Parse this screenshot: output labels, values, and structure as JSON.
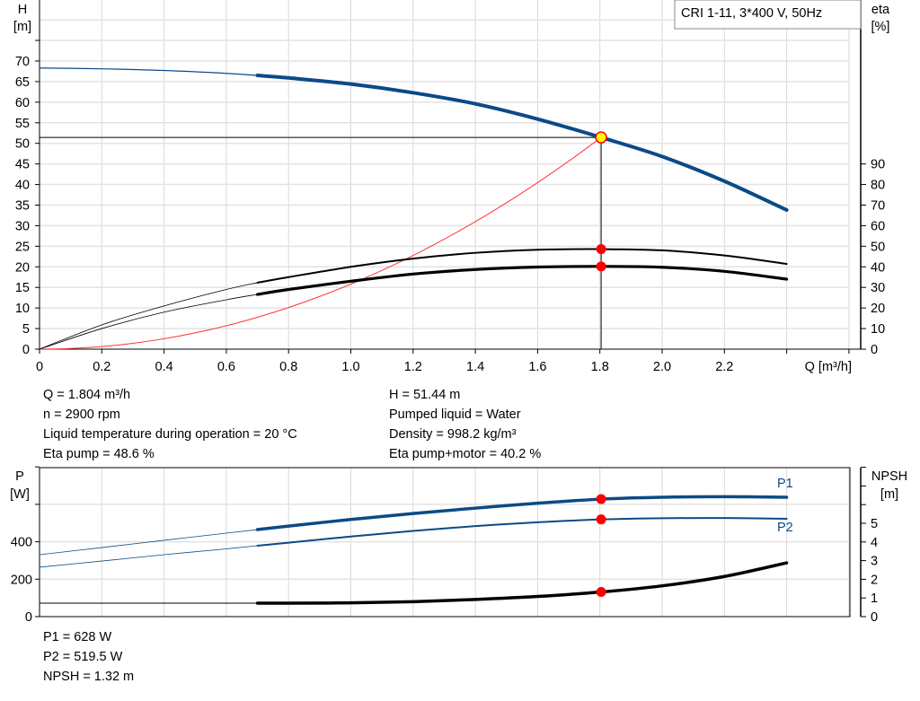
{
  "chart_data": [
    {
      "type": "line",
      "title": "CRI 1-11, 3*400 V, 50Hz",
      "xlabel": "Q [m³/h]",
      "ylabel": [
        "H",
        "[m]"
      ],
      "y2label": [
        "eta",
        "[%]"
      ],
      "xlim": [
        0,
        2.6
      ],
      "ylim": [
        0,
        85
      ],
      "y2lim": [
        0,
        90
      ],
      "x_ticks": [
        "0",
        "0.2",
        "0.4",
        "0.6",
        "0.8",
        "1.0",
        "1.2",
        "1.4",
        "1.6",
        "1.8",
        "2.0",
        "2.2"
      ],
      "y_ticks": [
        "0",
        "5",
        "10",
        "15",
        "20",
        "25",
        "30",
        "35",
        "40",
        "45",
        "50",
        "55",
        "60",
        "65",
        "70"
      ],
      "y2_ticks": [
        "0",
        "10",
        "20",
        "30",
        "40",
        "50",
        "60",
        "70",
        "80",
        "90"
      ],
      "grid": true,
      "x": [
        0,
        0.2,
        0.4,
        0.6,
        0.7,
        0.8,
        1.0,
        1.2,
        1.4,
        1.6,
        1.804,
        2.0,
        2.2,
        2.4
      ],
      "series": [
        {
          "key": "H",
          "axis": "left",
          "color": "#0b4a86",
          "values": [
            68.3,
            68.1,
            67.7,
            67.0,
            66.5,
            65.9,
            64.4,
            62.3,
            59.6,
            55.9,
            51.44,
            46.8,
            40.8,
            33.8
          ]
        },
        {
          "key": "eta_pump",
          "axis": "right",
          "color": "#000000",
          "values": [
            0,
            11.8,
            21,
            29,
            32.3,
            35,
            40,
            44,
            46.8,
            48.3,
            48.6,
            48.0,
            45.5,
            41.4
          ]
        },
        {
          "key": "eta_pump_motor",
          "axis": "right",
          "color": "#000000",
          "values": [
            0,
            10,
            18,
            24,
            26.6,
            29,
            33,
            36.5,
            38.7,
            39.9,
            40.2,
            39.8,
            37.8,
            34.0
          ]
        }
      ],
      "system_curve": {
        "color": "#ff3333",
        "through": [
          1.804,
          51.44
        ]
      },
      "operating_point": {
        "Q": 1.804,
        "H": 51.44,
        "eta_pump": 48.6,
        "eta_pump_motor": 40.2
      },
      "thin_until_Q": 0.7
    },
    {
      "type": "line",
      "ylabel": [
        "P",
        "[W]"
      ],
      "y2label": [
        "NPSH",
        "[m]"
      ],
      "xlim": [
        0,
        2.6
      ],
      "ylim": [
        0,
        800
      ],
      "y2lim": [
        0,
        8
      ],
      "y_ticks": [
        "0",
        "200",
        "400"
      ],
      "y2_ticks": [
        "0",
        "1",
        "2",
        "3",
        "4",
        "5"
      ],
      "grid": true,
      "x": [
        0,
        0.2,
        0.4,
        0.6,
        0.7,
        0.8,
        1.0,
        1.2,
        1.4,
        1.6,
        1.804,
        2.0,
        2.2,
        2.4
      ],
      "series": [
        {
          "key": "P1",
          "name": "P1",
          "axis": "left",
          "color": "#0b4a86",
          "values": [
            331,
            369,
            408,
            446,
            465,
            484,
            519,
            551,
            580,
            606,
            628,
            638,
            641,
            638
          ]
        },
        {
          "key": "P2",
          "name": "P2",
          "axis": "left",
          "color": "#0b4a86",
          "values": [
            264,
            297,
            331,
            362,
            379,
            395,
            428,
            458,
            484,
            504,
            519.5,
            526,
            527,
            523
          ]
        },
        {
          "key": "NPSH",
          "axis": "right",
          "color": "#000000",
          "values": [
            0.72,
            0.72,
            0.72,
            0.72,
            0.72,
            0.72,
            0.74,
            0.8,
            0.92,
            1.08,
            1.32,
            1.65,
            2.15,
            2.88
          ]
        }
      ],
      "operating_point": {
        "Q": 1.804,
        "P1": 628,
        "P2": 519.5,
        "NPSH": 1.32
      }
    }
  ],
  "legend_box": "CRI 1-11, 3*400 V, 50Hz",
  "info_top": {
    "left": [
      "Q = 1.804 m³/h",
      "n = 2900 rpm",
      "Liquid temperature during operation = 20 °C",
      "Eta pump = 48.6 %"
    ],
    "right": [
      "H = 51.44 m",
      "Pumped liquid = Water",
      "Density = 998.2 kg/m³",
      "Eta pump+motor = 40.2 %"
    ]
  },
  "info_bottom": [
    "P1 = 628 W",
    "P2 = 519.5 W",
    "NPSH = 1.32 m"
  ],
  "colors": {
    "curve_blue": "#0b4a86",
    "marker_red": "#ff0000",
    "marker_yellow": "#ffff00",
    "grid": "#d9d9d9"
  }
}
